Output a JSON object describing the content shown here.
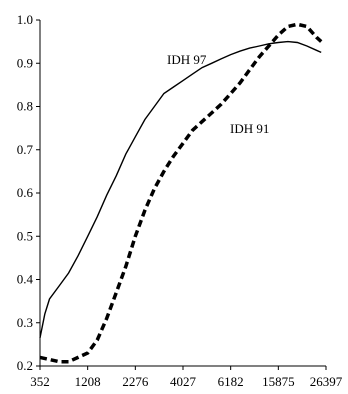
{
  "chart_data": {
    "type": "line",
    "title": "",
    "xlabel": "",
    "ylabel": "",
    "ylim": [
      0.2,
      1.0
    ],
    "yticks": [
      "0.2",
      "0.3",
      "0.4",
      "0.5",
      "0.6",
      "0.7",
      "0.8",
      "0.9",
      "1.0"
    ],
    "xticks": [
      "352",
      "1208",
      "2276",
      "4027",
      "6182",
      "15875",
      "26397"
    ],
    "x_axis_scale": "categorical",
    "grid": false,
    "legend": "none",
    "series": [
      {
        "name": "IDH 97",
        "style": "solid",
        "color": "#000000",
        "points": [
          [
            0.0,
            0.265
          ],
          [
            0.1,
            0.32
          ],
          [
            0.2,
            0.355
          ],
          [
            0.4,
            0.385
          ],
          [
            0.6,
            0.415
          ],
          [
            0.8,
            0.455
          ],
          [
            1.0,
            0.5
          ],
          [
            1.2,
            0.545
          ],
          [
            1.4,
            0.595
          ],
          [
            1.6,
            0.64
          ],
          [
            1.8,
            0.69
          ],
          [
            2.0,
            0.73
          ],
          [
            2.2,
            0.77
          ],
          [
            2.4,
            0.8
          ],
          [
            2.6,
            0.83
          ],
          [
            2.8,
            0.845
          ],
          [
            3.0,
            0.86
          ],
          [
            3.2,
            0.875
          ],
          [
            3.4,
            0.89
          ],
          [
            3.6,
            0.9
          ],
          [
            3.8,
            0.91
          ],
          [
            4.0,
            0.92
          ],
          [
            4.2,
            0.928
          ],
          [
            4.4,
            0.935
          ],
          [
            4.6,
            0.94
          ],
          [
            4.8,
            0.945
          ],
          [
            5.0,
            0.948
          ],
          [
            5.2,
            0.95
          ],
          [
            5.4,
            0.948
          ],
          [
            5.6,
            0.94
          ],
          [
            5.8,
            0.93
          ],
          [
            5.9,
            0.925
          ]
        ]
      },
      {
        "name": "IDH 91",
        "style": "dashed",
        "color": "#000000",
        "points": [
          [
            0.0,
            0.22
          ],
          [
            0.2,
            0.215
          ],
          [
            0.4,
            0.21
          ],
          [
            0.6,
            0.21
          ],
          [
            0.8,
            0.22
          ],
          [
            1.0,
            0.23
          ],
          [
            1.2,
            0.26
          ],
          [
            1.4,
            0.31
          ],
          [
            1.6,
            0.37
          ],
          [
            1.8,
            0.43
          ],
          [
            2.0,
            0.5
          ],
          [
            2.2,
            0.56
          ],
          [
            2.4,
            0.61
          ],
          [
            2.6,
            0.65
          ],
          [
            2.8,
            0.685
          ],
          [
            3.0,
            0.715
          ],
          [
            3.2,
            0.745
          ],
          [
            3.4,
            0.765
          ],
          [
            3.6,
            0.785
          ],
          [
            3.8,
            0.805
          ],
          [
            4.0,
            0.83
          ],
          [
            4.2,
            0.855
          ],
          [
            4.4,
            0.885
          ],
          [
            4.6,
            0.915
          ],
          [
            4.8,
            0.94
          ],
          [
            5.0,
            0.965
          ],
          [
            5.2,
            0.985
          ],
          [
            5.4,
            0.99
          ],
          [
            5.6,
            0.985
          ],
          [
            5.8,
            0.96
          ],
          [
            5.9,
            0.95
          ]
        ]
      }
    ]
  }
}
